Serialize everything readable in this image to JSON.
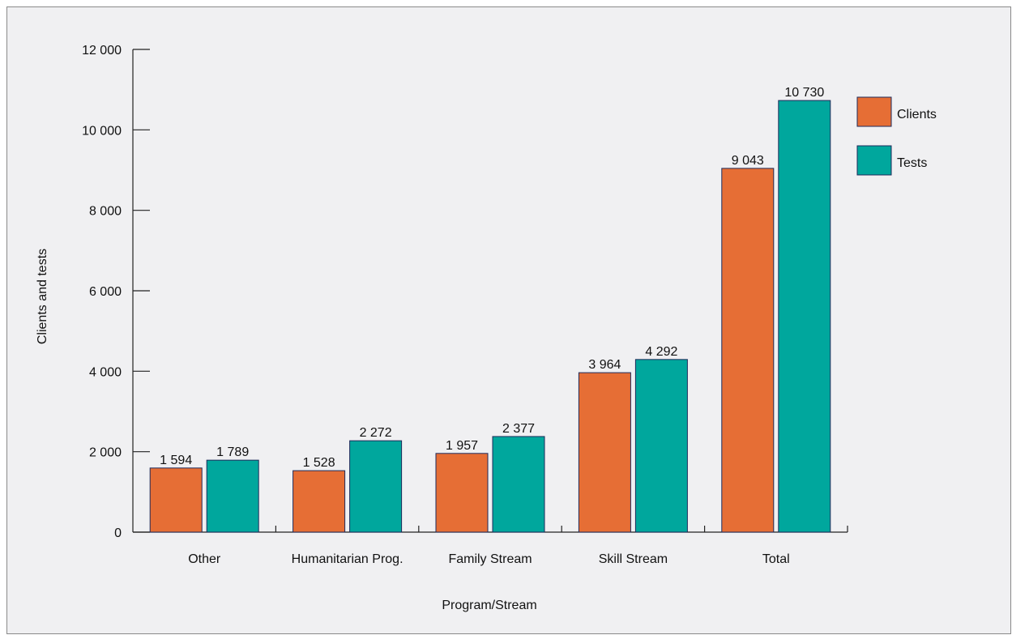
{
  "chart_data": {
    "type": "bar",
    "title": "",
    "xlabel": "Program/Stream",
    "ylabel": "Clients and tests",
    "categories": [
      "Other",
      "Humanitarian Prog.",
      "Family Stream",
      "Skill Stream",
      "Total"
    ],
    "series": [
      {
        "name": "Clients",
        "color": "#e66e35",
        "values": [
          1594,
          1528,
          1957,
          3964,
          9043
        ],
        "labels": [
          "1 594",
          "1 528",
          "1 957",
          "3 964",
          "9 043"
        ]
      },
      {
        "name": "Tests",
        "color": "#00a79d",
        "values": [
          1789,
          2272,
          2377,
          4292,
          10730
        ],
        "labels": [
          "1 789",
          "2 272",
          "2 377",
          "4 292",
          "10 730"
        ]
      }
    ],
    "ylim": [
      0,
      12000
    ],
    "yticks": [
      0,
      2000,
      4000,
      6000,
      8000,
      10000,
      12000
    ],
    "ytick_labels": [
      "0",
      "2 000",
      "4 000",
      "6 000",
      "8 000",
      "10 000",
      "12 000"
    ],
    "grid": false,
    "legend_position": "top-right"
  }
}
